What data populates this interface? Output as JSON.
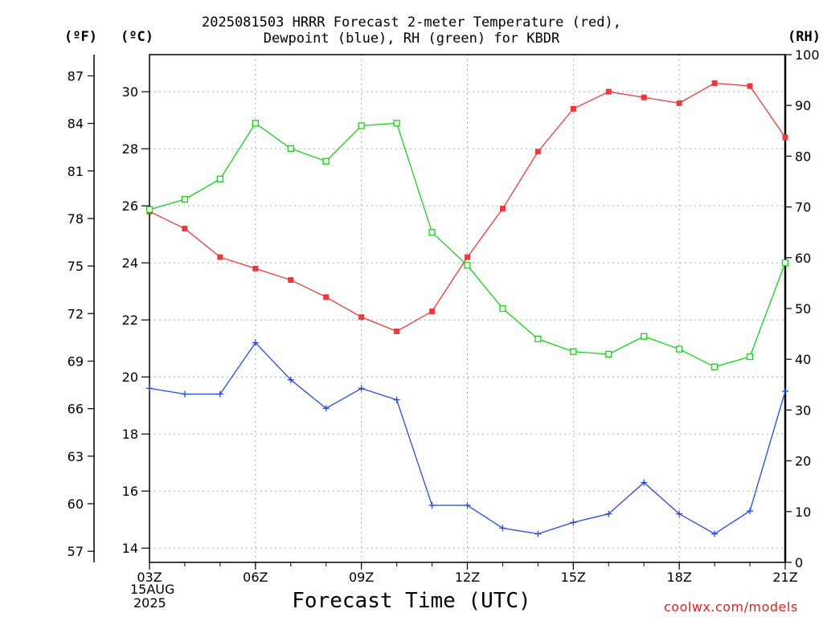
{
  "title_line1": "2025081503 HRRR Forecast 2-meter Temperature (red),",
  "title_line2": "Dewpoint (blue), RH (green) for KBDR",
  "unit_f": "(ºF)",
  "unit_c": "(ºC)",
  "unit_rh": "(RH)",
  "xlabel": "Forecast Time (UTC)",
  "date_day": "15AUG",
  "date_year": "2025",
  "credit": "coolwx.com/models",
  "colors": {
    "temperature": "#e83a3a",
    "dewpoint": "#2448e0",
    "rh": "#18d018",
    "grid": "#aaaaaa"
  },
  "chart_data": {
    "type": "line",
    "x_tick_labels": [
      "03Z",
      "06Z",
      "09Z",
      "12Z",
      "15Z",
      "18Z",
      "21Z"
    ],
    "x_hours": [
      3,
      4,
      5,
      6,
      7,
      8,
      9,
      10,
      11,
      12,
      13,
      14,
      15,
      16,
      17,
      18,
      19,
      20,
      21
    ],
    "xlim": [
      3,
      21
    ],
    "celsius_axis": {
      "ylim": [
        13.5,
        31.3
      ],
      "ticks": [
        14,
        16,
        18,
        20,
        22,
        24,
        26,
        28,
        30
      ]
    },
    "fahrenheit_axis": {
      "ticks": [
        57,
        60,
        63,
        66,
        69,
        72,
        75,
        78,
        81,
        84,
        87
      ]
    },
    "rh_axis": {
      "ylim": [
        0,
        100
      ],
      "ticks": [
        0,
        10,
        20,
        30,
        40,
        50,
        60,
        70,
        80,
        90,
        100
      ]
    },
    "series": [
      {
        "name": "Temperature",
        "axis": "celsius",
        "marker": "filled-square",
        "values": [
          25.8,
          25.2,
          24.2,
          23.8,
          23.4,
          22.8,
          22.1,
          21.6,
          22.3,
          24.2,
          25.9,
          27.9,
          29.4,
          30.0,
          29.8,
          29.6,
          30.3,
          30.2,
          28.4
        ]
      },
      {
        "name": "Dewpoint",
        "axis": "celsius",
        "marker": "plus",
        "values": [
          19.6,
          19.4,
          19.4,
          21.2,
          19.9,
          18.9,
          19.6,
          19.2,
          15.5,
          15.5,
          14.7,
          14.5,
          14.9,
          15.2,
          16.3,
          15.2,
          14.5,
          15.3,
          19.5
        ]
      },
      {
        "name": "RH",
        "axis": "rh",
        "marker": "open-square",
        "values": [
          69.5,
          71.5,
          75.5,
          86.5,
          81.5,
          79,
          86,
          86.5,
          65,
          58.5,
          50,
          44,
          41.5,
          41,
          44.5,
          42,
          38.5,
          40.5,
          59
        ]
      }
    ],
    "grid": true
  }
}
